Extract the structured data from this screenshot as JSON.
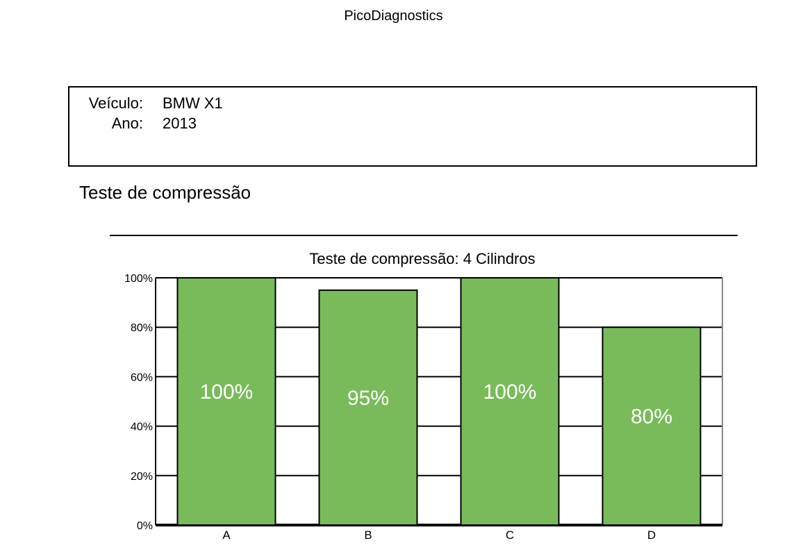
{
  "app": {
    "title": "PicoDiagnostics"
  },
  "vehicle": {
    "make_label": "Veículo:",
    "make_value": "BMW X1",
    "year_label": "Ano:",
    "year_value": "2013"
  },
  "section": {
    "title": "Teste de compressão"
  },
  "colors": {
    "bar": "#79bb5a",
    "bar_border": "#000000",
    "grid": "#000000"
  },
  "chart_data": {
    "type": "bar",
    "title": "Teste de compressão: 4 Cilindros",
    "categories": [
      "A",
      "B",
      "C",
      "D"
    ],
    "values": [
      100,
      95,
      100,
      80
    ],
    "data_labels": [
      "100%",
      "95%",
      "100%",
      "80%"
    ],
    "xlabel": "",
    "ylabel": "",
    "ylim": [
      0,
      100
    ],
    "yticks": [
      0,
      20,
      40,
      60,
      80,
      100
    ],
    "ytick_labels": [
      "0%",
      "20%",
      "40%",
      "60%",
      "80%",
      "100%"
    ],
    "grid": true,
    "legend": "none"
  }
}
